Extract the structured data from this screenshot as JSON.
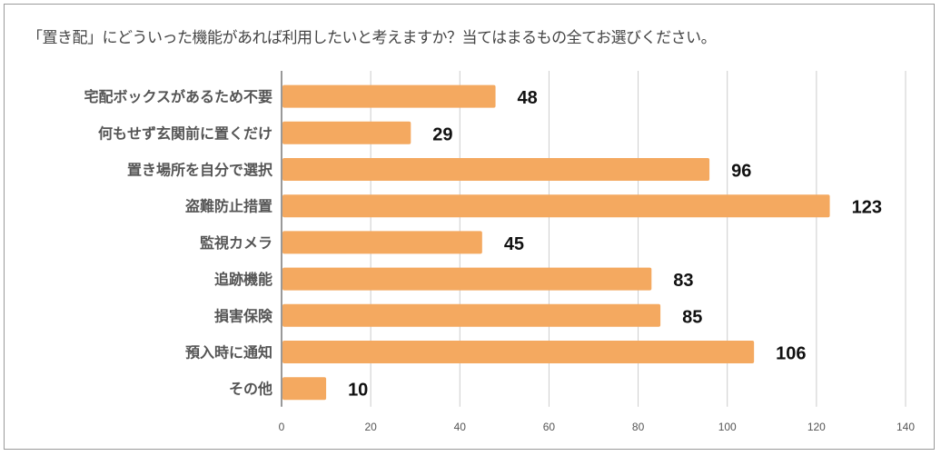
{
  "chart_data": {
    "type": "bar",
    "orientation": "horizontal",
    "title": "「置き配」にどういった機能があれば利用したいと考えますか？当てはまるもの全てお選びください。",
    "categories": [
      "宅配ボックスがあるため不要",
      "何もせず玄関前に置くだけ",
      "置き場所を自分で選択",
      "盗難防止措置",
      "監視カメラ",
      "追跡機能",
      "損害保険",
      "預入時に通知",
      "その他"
    ],
    "values": [
      48,
      29,
      96,
      123,
      45,
      83,
      85,
      106,
      10
    ],
    "xlim": [
      0,
      140
    ],
    "xticks": [
      "0",
      "20",
      "40",
      "60",
      "80",
      "100",
      "120",
      "140"
    ],
    "grid": true,
    "bar_color": "#f4a960",
    "xlabel": "",
    "ylabel": ""
  }
}
